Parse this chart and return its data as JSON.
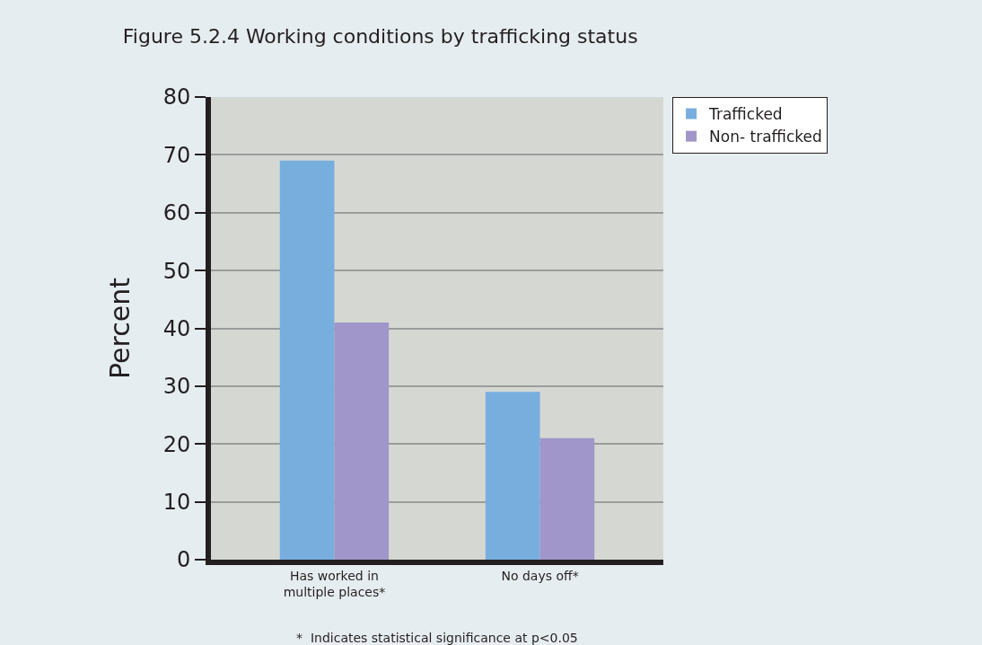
{
  "chart_data": {
    "type": "bar",
    "title": "Figure 5.2.4 Working conditions by trafficking status",
    "ylabel": "Percent",
    "categories": [
      "Has worked in\nmultiple places*",
      "No days off*"
    ],
    "series": [
      {
        "name": "Trafficked",
        "color": "#78aede",
        "values": [
          69,
          29
        ]
      },
      {
        "name": "Non- trafficked",
        "color": "#a096c9",
        "values": [
          41,
          21
        ]
      }
    ],
    "ylim": [
      0,
      80
    ],
    "yticks": [
      0,
      10,
      20,
      30,
      40,
      50,
      60,
      70,
      80
    ],
    "grid": "y",
    "legend": "top right",
    "annotations": [
      "*  Indicates statistical significance at p<0.05"
    ]
  }
}
